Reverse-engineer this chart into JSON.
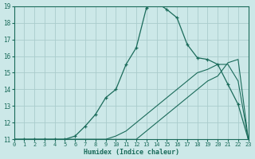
{
  "xlabel": "Humidex (Indice chaleur)",
  "background_color": "#cce8e8",
  "grid_color": "#aacccc",
  "line_color": "#1a6b5a",
  "xlim": [
    0,
    23
  ],
  "ylim": [
    11,
    19
  ],
  "yticks": [
    11,
    12,
    13,
    14,
    15,
    16,
    17,
    18,
    19
  ],
  "xticks": [
    0,
    1,
    2,
    3,
    4,
    5,
    6,
    7,
    8,
    9,
    10,
    11,
    12,
    13,
    14,
    15,
    16,
    17,
    18,
    19,
    20,
    21,
    22,
    23
  ],
  "curve1_x": [
    0,
    1,
    2,
    3,
    4,
    5,
    6,
    7,
    8,
    9,
    10,
    11,
    12,
    13,
    14,
    15,
    16,
    17,
    18,
    19,
    20,
    21,
    22,
    23
  ],
  "curve1_y": [
    11,
    11,
    11,
    11,
    11,
    11,
    11.2,
    11.8,
    12.5,
    13.5,
    14.0,
    15.5,
    16.5,
    18.9,
    19.2,
    18.8,
    18.3,
    16.7,
    15.9,
    15.8,
    15.5,
    14.3,
    13.1,
    11
  ],
  "curve2_x": [
    0,
    1,
    2,
    3,
    4,
    5,
    6,
    7,
    8,
    9,
    10,
    11,
    12,
    13,
    14,
    15,
    16,
    17,
    18,
    19,
    20,
    21,
    22,
    23
  ],
  "curve2_y": [
    11,
    11,
    11,
    11,
    11,
    11,
    11,
    11,
    11,
    11,
    11,
    11,
    11,
    11.5,
    12.0,
    12.5,
    13.0,
    13.5,
    14.0,
    14.5,
    14.8,
    15.6,
    15.8,
    11
  ],
  "curve3_x": [
    0,
    1,
    2,
    3,
    4,
    5,
    6,
    7,
    8,
    9,
    10,
    11,
    12,
    13,
    14,
    15,
    16,
    17,
    18,
    19,
    20,
    21,
    22,
    23
  ],
  "curve3_y": [
    11,
    11,
    11,
    11,
    11,
    11,
    11,
    11,
    11,
    11,
    11.2,
    11.5,
    12.0,
    12.5,
    13.0,
    13.5,
    14.0,
    14.5,
    15.0,
    15.2,
    15.5,
    15.5,
    14.5,
    11
  ]
}
